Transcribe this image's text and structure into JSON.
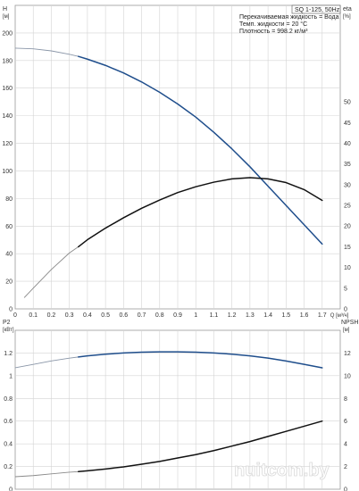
{
  "chart_data": [
    {
      "type": "line",
      "title": "SQ 1-125, 50Hz",
      "info": [
        "Перекачиваемая жидкость = Вода",
        "Темп. жидкости = 20 °C",
        "Плотность = 998.2 кг/м³"
      ],
      "xlabel": "Q [м³/ч]",
      "x_unit": "[м³/ч]",
      "xlim": [
        0,
        1.8
      ],
      "x_ticks": [
        "0",
        "0.1",
        "0.2",
        "0.3",
        "0.4",
        "0.5",
        "0.6",
        "0.7",
        "0.8",
        "0.9",
        "1",
        "1.1",
        "1.2",
        "1.3",
        "1.4",
        "1.5",
        "1.6",
        "1.7"
      ],
      "x_tick_values": [
        0,
        0.1,
        0.2,
        0.3,
        0.4,
        0.5,
        0.6,
        0.7,
        0.8,
        0.9,
        1.0,
        1.1,
        1.2,
        1.3,
        1.4,
        1.5,
        1.6,
        1.7
      ],
      "ylabel_left": "H",
      "ylabel_left_unit": "[м]",
      "ylim_left": [
        0,
        220
      ],
      "y_ticks_left": [
        0,
        20,
        40,
        60,
        80,
        100,
        120,
        140,
        160,
        180,
        200
      ],
      "ylabel_right": "eta",
      "ylabel_right_unit": "[%]",
      "ylim_right": [
        0,
        73.3
      ],
      "y_ticks_right": [
        0,
        5,
        10,
        15,
        20,
        25,
        30,
        35,
        40,
        45,
        50
      ],
      "grid": true,
      "series": [
        {
          "axis": "left",
          "color": "#1f4e8c",
          "light_color": "#8a96a8",
          "solid_from_x": 0.35,
          "x": [
            0,
            0.1,
            0.2,
            0.3,
            0.35,
            0.4,
            0.5,
            0.6,
            0.7,
            0.8,
            0.9,
            1.0,
            1.1,
            1.2,
            1.3,
            1.4,
            1.5,
            1.6,
            1.7
          ],
          "y": [
            189,
            188.5,
            187,
            184.5,
            183,
            181,
            176.5,
            171,
            164.5,
            157,
            148.5,
            139,
            128,
            116,
            103,
            89,
            75,
            61,
            47
          ]
        },
        {
          "axis": "right",
          "color": "#111111",
          "light_color": "#8a8a8a",
          "solid_from_x": 0.35,
          "x": [
            0.05,
            0.1,
            0.2,
            0.3,
            0.35,
            0.4,
            0.5,
            0.6,
            0.7,
            0.8,
            0.9,
            1.0,
            1.1,
            1.2,
            1.3,
            1.4,
            1.5,
            1.6,
            1.7
          ],
          "y": [
            2.7,
            5,
            9.5,
            13.5,
            15,
            16.7,
            19.5,
            22,
            24.3,
            26.3,
            28.1,
            29.5,
            30.6,
            31.4,
            31.7,
            31.4,
            30.5,
            28.8,
            26.2
          ]
        }
      ]
    },
    {
      "type": "line",
      "xlim": [
        0,
        1.8
      ],
      "ylabel_left": "P2",
      "ylabel_left_unit": "[кВт]",
      "ylim_left": [
        0,
        1.4
      ],
      "y_ticks_left": [
        0,
        0.2,
        0.4,
        0.6,
        0.8,
        1,
        1.2
      ],
      "ylabel_right": "NPSH",
      "ylabel_right_unit": "[м]",
      "ylim_right": [
        0,
        14
      ],
      "y_ticks_right": [
        0,
        2,
        4,
        6,
        8,
        10,
        12
      ],
      "grid": true,
      "series": [
        {
          "axis": "left",
          "color": "#1f4e8c",
          "light_color": "#8a96a8",
          "solid_from_x": 0.35,
          "x": [
            0,
            0.1,
            0.2,
            0.3,
            0.35,
            0.4,
            0.5,
            0.6,
            0.7,
            0.8,
            0.9,
            1.0,
            1.1,
            1.2,
            1.3,
            1.4,
            1.5,
            1.6,
            1.7
          ],
          "y": [
            1.07,
            1.1,
            1.13,
            1.155,
            1.165,
            1.175,
            1.19,
            1.2,
            1.207,
            1.21,
            1.21,
            1.207,
            1.2,
            1.19,
            1.175,
            1.155,
            1.13,
            1.1,
            1.07
          ]
        },
        {
          "axis": "right",
          "color": "#111111",
          "light_color": "#8a8a8a",
          "solid_from_x": 0.35,
          "x": [
            0,
            0.1,
            0.2,
            0.3,
            0.35,
            0.4,
            0.5,
            0.6,
            0.7,
            0.8,
            0.9,
            1.0,
            1.1,
            1.2,
            1.3,
            1.4,
            1.5,
            1.6,
            1.7
          ],
          "y": [
            1.1,
            1.2,
            1.35,
            1.5,
            1.55,
            1.62,
            1.78,
            1.97,
            2.2,
            2.45,
            2.75,
            3.05,
            3.4,
            3.8,
            4.2,
            4.65,
            5.1,
            5.55,
            6.0
          ]
        }
      ]
    }
  ],
  "watermark": "nuitcom.by"
}
